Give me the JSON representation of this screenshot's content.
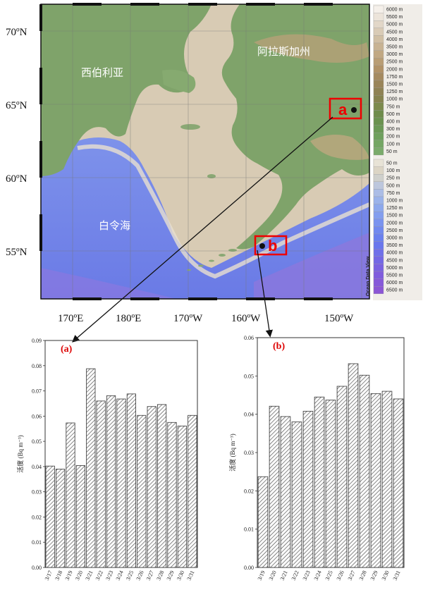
{
  "map": {
    "lat_labels": [
      "70ºN",
      "65ºN",
      "60ºN",
      "55ºN"
    ],
    "lon_labels": [
      "170ºE",
      "180ºE",
      "170ºW",
      "160ºW",
      "150ºW"
    ],
    "regions": {
      "siberia": "西伯利亚",
      "alaska": "阿拉斯加州",
      "bering": "白令海"
    },
    "sites": [
      {
        "id": "a",
        "label": "a"
      },
      {
        "id": "b",
        "label": "b"
      }
    ],
    "legend_land": [
      "6000 m",
      "5500 m",
      "5000 m",
      "4500 m",
      "4000 m",
      "3500 m",
      "3000 m",
      "2500 m",
      "2000 m",
      "1750 m",
      "1500 m",
      "1250 m",
      "1000 m",
      "750 m",
      "500 m",
      "400 m",
      "300 m",
      "200 m",
      "100 m",
      "50 m"
    ],
    "legend_sea": [
      "50 m",
      "100 m",
      "250 m",
      "500 m",
      "750 m",
      "1000 m",
      "1250 m",
      "1500 m",
      "2000 m",
      "2500 m",
      "3000 m",
      "3500 m",
      "4000 m",
      "4500 m",
      "5000 m",
      "5500 m",
      "6000 m",
      "6500 m"
    ],
    "credit": "Ocean Data View",
    "colors": {
      "land": "#7fa36a",
      "shelf": "#d6c8b0",
      "deep": "#6b7fe8",
      "marker": "#e00000"
    }
  },
  "chart_data": [
    {
      "type": "bar",
      "panel_label": "(a)",
      "ylabel": "活度 (Bq m⁻³)",
      "categories": [
        "3/17",
        "3/18",
        "3/19",
        "3/20",
        "3/21",
        "3/22",
        "3/23",
        "3/24",
        "3/25",
        "3/26",
        "3/27",
        "3/28",
        "3/29",
        "3/30",
        "3/31"
      ],
      "values": [
        0.0402,
        0.039,
        0.0573,
        0.0404,
        0.0788,
        0.066,
        0.0681,
        0.0668,
        0.0688,
        0.0603,
        0.0638,
        0.0646,
        0.0575,
        0.0561,
        0.0603
      ],
      "ylim": [
        0,
        0.09
      ],
      "yticks": [
        "0.00",
        "0.01",
        "0.02",
        "0.03",
        "0.04",
        "0.05",
        "0.06",
        "0.07",
        "0.08",
        "0.09"
      ],
      "pattern": "hatched"
    },
    {
      "type": "bar",
      "panel_label": "(b)",
      "ylabel": "活度 (Bq m⁻³)",
      "categories": [
        "3/19",
        "3/20",
        "3/21",
        "3/22",
        "3/23",
        "3/24",
        "3/25",
        "3/26",
        "3/27",
        "3/28",
        "3/29",
        "3/30",
        "3/31"
      ],
      "values": [
        0.0237,
        0.0421,
        0.0394,
        0.038,
        0.0408,
        0.0445,
        0.0437,
        0.0473,
        0.0532,
        0.0502,
        0.0454,
        0.046,
        0.044
      ],
      "ylim": [
        0,
        0.06
      ],
      "yticks": [
        "0.00",
        "0.01",
        "0.02",
        "0.03",
        "0.04",
        "0.05",
        "0.06"
      ],
      "pattern": "hatched"
    }
  ]
}
